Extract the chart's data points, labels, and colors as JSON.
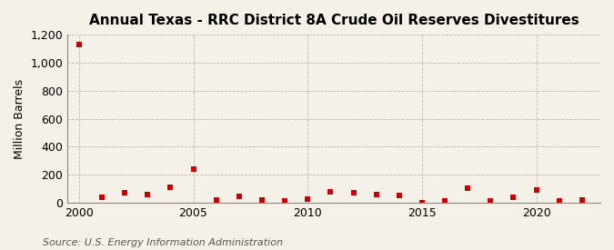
{
  "title": "Annual Texas - RRC District 8A Crude Oil Reserves Divestitures",
  "ylabel": "Million Barrels",
  "source": "Source: U.S. Energy Information Administration",
  "background_color": "#f5f0e8",
  "marker_color": "#cc0000",
  "years": [
    2000,
    2001,
    2002,
    2003,
    2004,
    2005,
    2006,
    2007,
    2008,
    2009,
    2010,
    2011,
    2012,
    2013,
    2014,
    2015,
    2016,
    2017,
    2018,
    2019,
    2020,
    2021,
    2022
  ],
  "values": [
    1130,
    40,
    70,
    55,
    110,
    240,
    20,
    45,
    20,
    15,
    25,
    80,
    70,
    60,
    50,
    0,
    15,
    100,
    10,
    35,
    90,
    15,
    20
  ],
  "ylim": [
    0,
    1200
  ],
  "yticks": [
    0,
    200,
    400,
    600,
    800,
    1000,
    1200
  ],
  "ytick_labels": [
    "0",
    "200",
    "400",
    "600",
    "800",
    "1,000",
    "1,200"
  ],
  "xticks": [
    2000,
    2005,
    2010,
    2015,
    2020
  ],
  "grid_color": "#aaaaaa",
  "title_fontsize": 11,
  "axis_fontsize": 9,
  "source_fontsize": 8
}
